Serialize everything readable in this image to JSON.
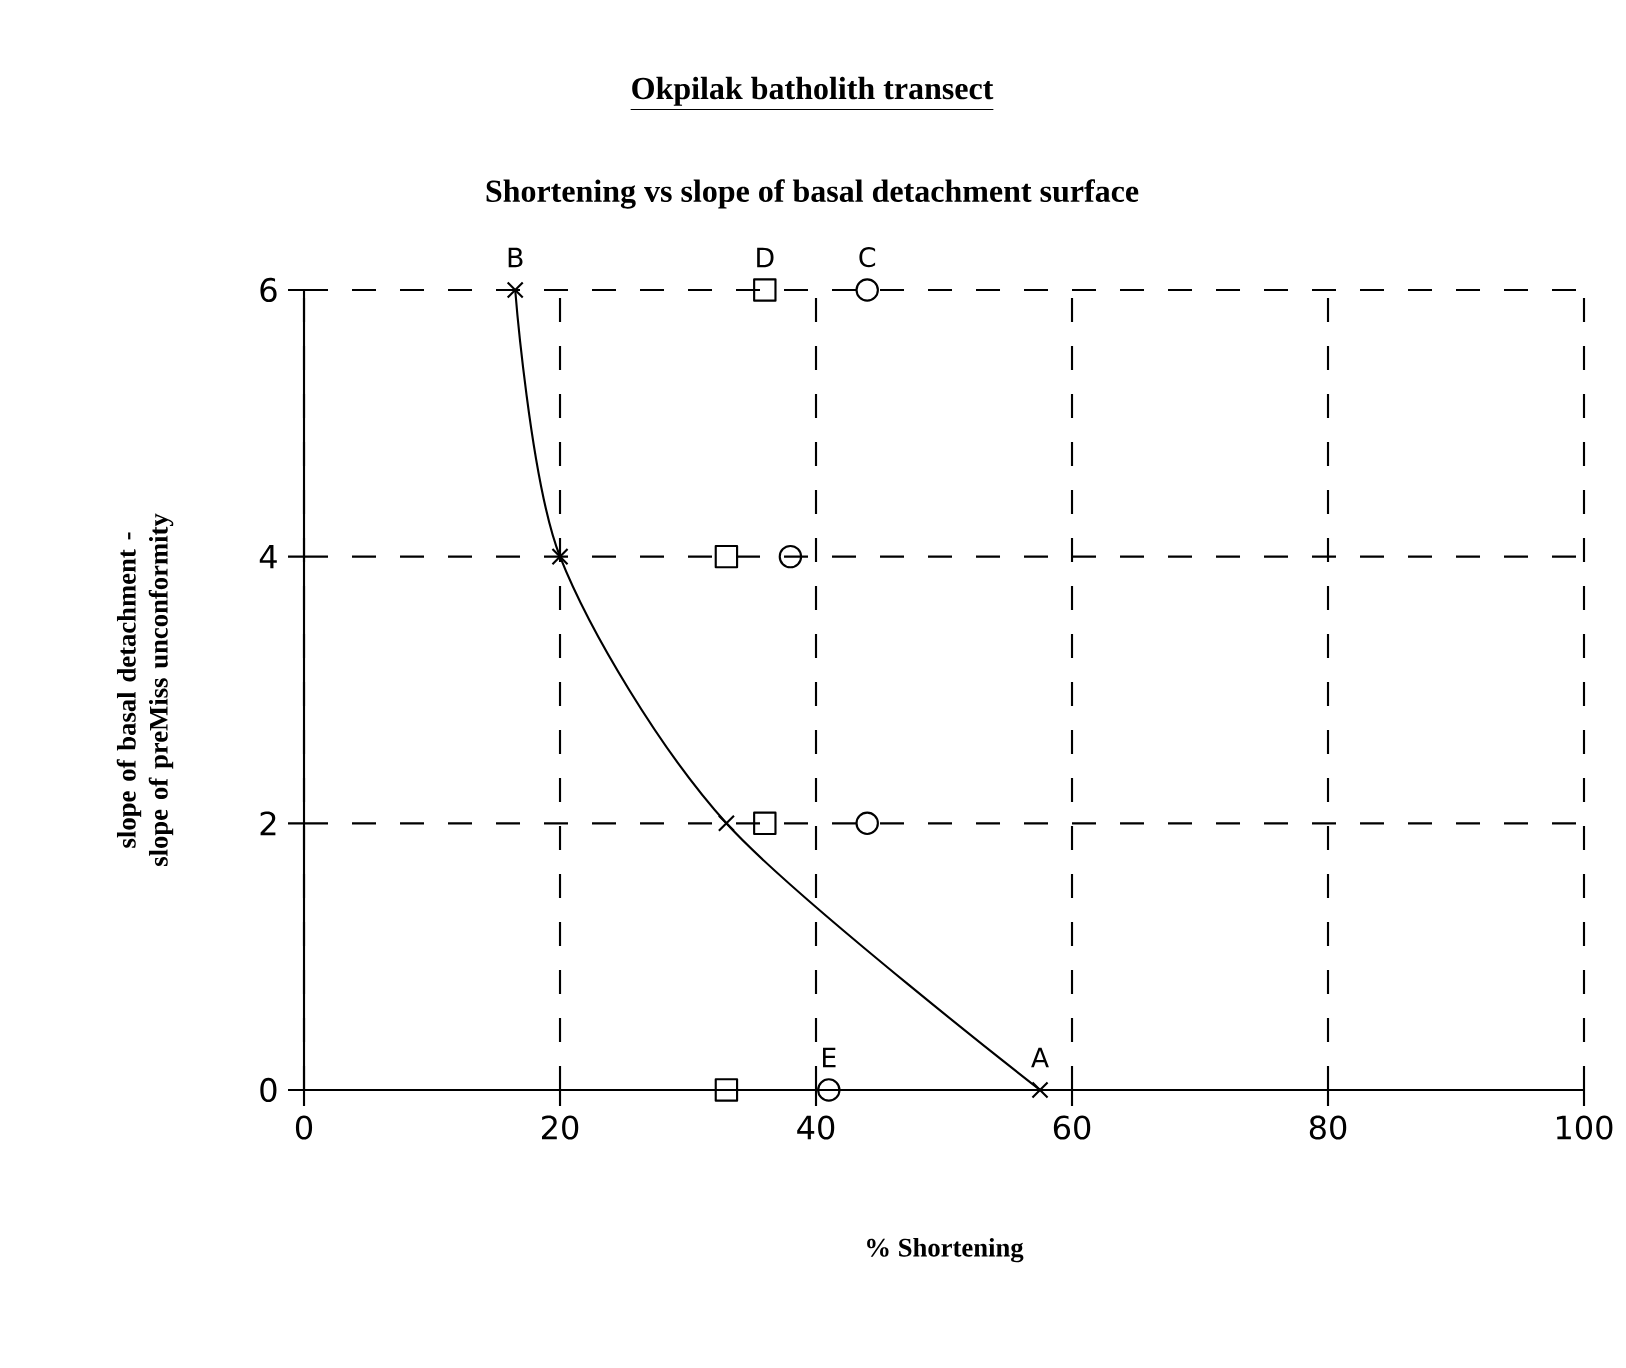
{
  "chart_data": {
    "type": "scatter",
    "title": "Okpilak batholith transect",
    "subtitle": "Shortening vs slope of basal detachment surface",
    "xlabel": "% Shortening",
    "ylabel": "slope of basal detachment - slope of preMiss unconformity",
    "xlim": [
      0,
      100
    ],
    "ylim": [
      0,
      6
    ],
    "xticks": [
      0,
      20,
      40,
      60,
      80,
      100
    ],
    "yticks": [
      0,
      2,
      4,
      6
    ],
    "grid": true,
    "series": [
      {
        "type": "line",
        "marker": "cross",
        "color": "#000000",
        "x": [
          57.5,
          33,
          20,
          16.5
        ],
        "values": [
          0,
          2,
          4,
          6
        ]
      },
      {
        "marker": "square",
        "color": "#000000",
        "x": [
          33,
          36,
          33,
          36
        ],
        "values": [
          0,
          2,
          4,
          6
        ]
      },
      {
        "marker": "circle",
        "color": "#000000",
        "x": [
          41,
          44,
          38,
          44
        ],
        "values": [
          0,
          2,
          4,
          6
        ]
      }
    ],
    "annotations": [
      {
        "text": "B",
        "x": 16.5,
        "y": 6
      },
      {
        "text": "D",
        "x": 36,
        "y": 6
      },
      {
        "text": "C",
        "x": 44,
        "y": 6
      },
      {
        "text": "E",
        "x": 41,
        "y": 0
      },
      {
        "text": "A",
        "x": 57.5,
        "y": 0
      }
    ]
  }
}
